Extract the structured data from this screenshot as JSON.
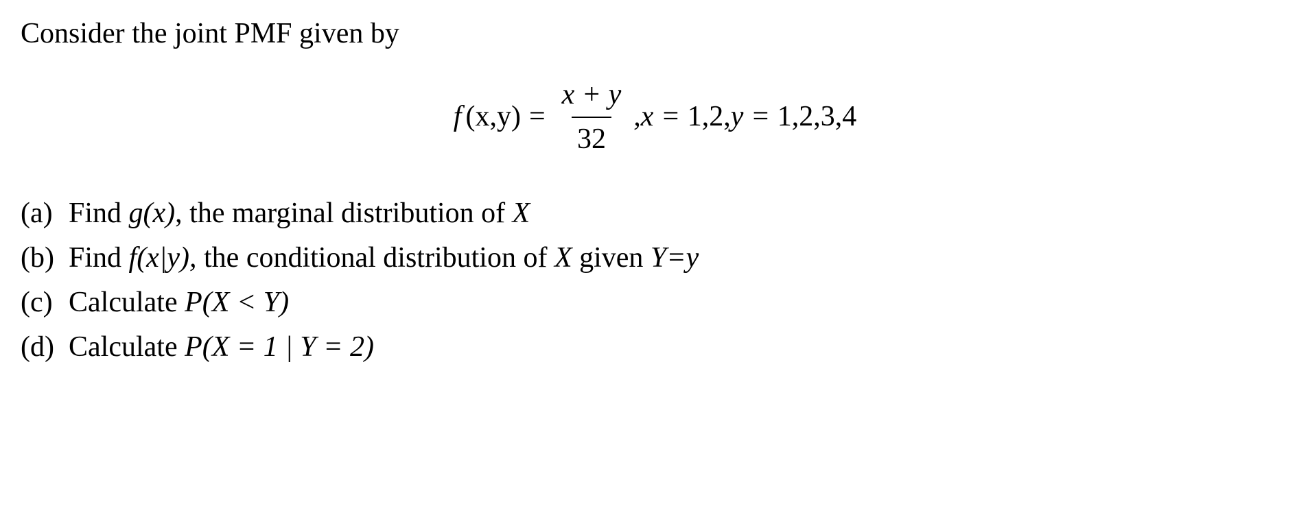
{
  "intro": "Consider the joint PMF given by",
  "formula": {
    "lhs_f": "f",
    "lhs_args": "(x,y)",
    "eq": "=",
    "numerator": "x + y",
    "denominator": "32",
    "tail_prefix": ",x = ",
    "tail_xvals": "1,2,",
    "tail_y": "y = ",
    "tail_yvals": "1,2,3,4"
  },
  "questions": {
    "a": {
      "label": "(a)",
      "pre": "Find ",
      "sym": "g(x)",
      "post": ", the marginal distribution of ",
      "var1": "X"
    },
    "b": {
      "label": "(b)",
      "pre": "Find ",
      "sym": "f(x|y),",
      "post": " the conditional distribution of ",
      "var1": "X ",
      "mid": "given ",
      "var2": "Y=y"
    },
    "c": {
      "label": "(c)",
      "pre": "Calculate ",
      "sym": "P(X < Y)"
    },
    "d": {
      "label": "(d)",
      "pre": "Calculate ",
      "sym": "P(X = 1 | Y = 2)"
    }
  },
  "style": {
    "font_family": "Times New Roman",
    "font_size_pt": 42,
    "text_color": "#000000",
    "background_color": "#ffffff"
  }
}
